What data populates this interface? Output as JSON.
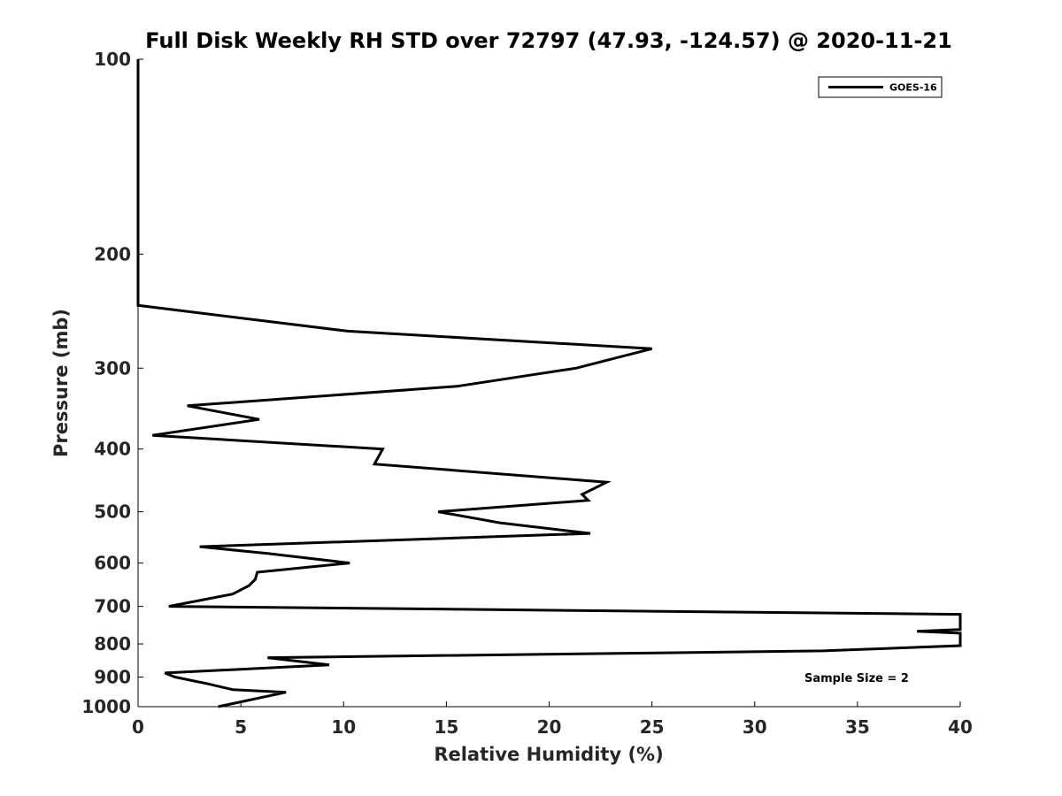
{
  "chart_data": {
    "type": "line",
    "title": "Full Disk Weekly RH STD over 72797 (47.93, -124.57) @ 2020-11-21",
    "xlabel": "Relative Humidity (%)",
    "ylabel": "Pressure (mb)",
    "xlim": [
      0,
      40
    ],
    "ylim": [
      100,
      1000
    ],
    "y_scale": "log",
    "y_reversed": true,
    "x_ticks": [
      0,
      5,
      10,
      15,
      20,
      25,
      30,
      35,
      40
    ],
    "y_ticks": [
      100,
      200,
      300,
      400,
      500,
      600,
      700,
      800,
      900,
      1000
    ],
    "grid": false,
    "legend": {
      "position": "top-right",
      "entries": [
        "GOES-16"
      ]
    },
    "annotation": "Sample Size = 2",
    "series": [
      {
        "name": "GOES-16",
        "color": "#000000",
        "points": [
          [
            0.0,
            100
          ],
          [
            0.0,
            150
          ],
          [
            0.0,
            200
          ],
          [
            0.0,
            240
          ],
          [
            10.2,
            263
          ],
          [
            25.0,
            280
          ],
          [
            21.3,
            300
          ],
          [
            15.5,
            320
          ],
          [
            2.4,
            343
          ],
          [
            5.9,
            360
          ],
          [
            0.7,
            381
          ],
          [
            11.9,
            400
          ],
          [
            11.5,
            422
          ],
          [
            22.8,
            450
          ],
          [
            21.6,
            470
          ],
          [
            21.9,
            480
          ],
          [
            14.6,
            500
          ],
          [
            17.6,
            520
          ],
          [
            22.0,
            540
          ],
          [
            3.0,
            566
          ],
          [
            6.3,
            580
          ],
          [
            10.3,
            600
          ],
          [
            5.8,
            620
          ],
          [
            5.7,
            636
          ],
          [
            5.4,
            650
          ],
          [
            4.6,
            670
          ],
          [
            1.5,
            700
          ],
          [
            40.0,
            720
          ],
          [
            40.0,
            760
          ],
          [
            37.9,
            765
          ],
          [
            40.0,
            770
          ],
          [
            40.0,
            805
          ],
          [
            33.3,
            820
          ],
          [
            6.3,
            840
          ],
          [
            9.3,
            862
          ],
          [
            1.3,
            887
          ],
          [
            1.8,
            900
          ],
          [
            3.4,
            922
          ],
          [
            4.6,
            941
          ],
          [
            7.2,
            950
          ],
          [
            3.9,
            1000
          ]
        ]
      }
    ]
  }
}
